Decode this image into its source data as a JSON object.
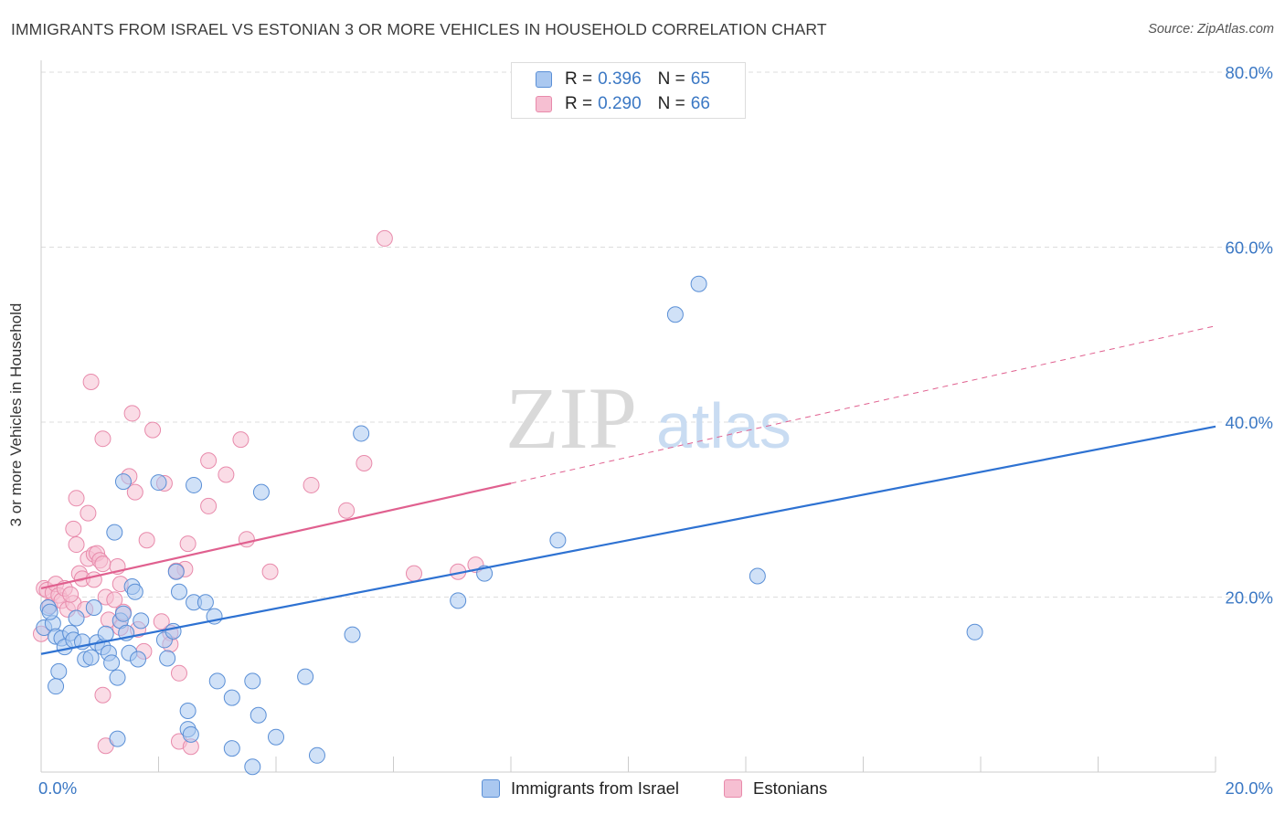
{
  "header": {
    "title": "IMMIGRANTS FROM ISRAEL VS ESTONIAN 3 OR MORE VEHICLES IN HOUSEHOLD CORRELATION CHART",
    "source": "Source: ZipAtlas.com"
  },
  "watermark": {
    "zip": "ZIP",
    "atlas": "atlas"
  },
  "legend_top": {
    "rows": [
      {
        "r_label": "R =",
        "r_value": "0.396",
        "n_label": "N =",
        "n_value": "65"
      },
      {
        "r_label": "R =",
        "r_value": "0.290",
        "n_label": "N =",
        "n_value": "66"
      }
    ]
  },
  "legend_bottom": {
    "items": [
      {
        "label": "Immigrants from Israel"
      },
      {
        "label": "Estonians"
      }
    ]
  },
  "colors": {
    "blue_fill": "#aac8f0",
    "blue_stroke": "#5a8fd6",
    "blue_line": "#2e72d2",
    "pink_fill": "#f6bfd2",
    "pink_stroke": "#e88aab",
    "pink_line": "#e0608f",
    "axis_text": "#3b78c4",
    "grid": "#dddddd"
  },
  "chart_data": {
    "type": "scatter",
    "title": "IMMIGRANTS FROM ISRAEL VS ESTONIAN 3 OR MORE VEHICLES IN HOUSEHOLD CORRELATION CHART",
    "xlabel": "",
    "ylabel": "3 or more Vehicles in Household",
    "xlim": [
      0,
      20
    ],
    "ylim": [
      0,
      80
    ],
    "x_ticks_labeled": [
      {
        "value": 0,
        "label": "0.0%"
      },
      {
        "value": 20,
        "label": "20.0%"
      }
    ],
    "x_ticks_minor": [
      2,
      4,
      6,
      8,
      10,
      12,
      14,
      16,
      18
    ],
    "y_ticks": [
      {
        "value": 20,
        "label": "20.0%"
      },
      {
        "value": 40,
        "label": "40.0%"
      },
      {
        "value": 60,
        "label": "60.0%"
      },
      {
        "value": 80,
        "label": "80.0%"
      }
    ],
    "grid": true,
    "legend_position": "top-center",
    "series": [
      {
        "name": "Immigrants from Israel",
        "color_key": "blue",
        "trend": {
          "x": [
            0,
            20
          ],
          "y": [
            13.5,
            39.5
          ],
          "dashed_after": null
        },
        "points": [
          [
            0.05,
            16.5
          ],
          [
            0.12,
            18.8
          ],
          [
            0.2,
            17.0
          ],
          [
            0.25,
            15.5
          ],
          [
            0.35,
            15.3
          ],
          [
            0.4,
            14.3
          ],
          [
            0.3,
            11.5
          ],
          [
            0.25,
            9.8
          ],
          [
            0.5,
            15.9
          ],
          [
            0.55,
            15.1
          ],
          [
            0.7,
            14.9
          ],
          [
            0.75,
            12.9
          ],
          [
            0.85,
            13.1
          ],
          [
            0.9,
            18.8
          ],
          [
            0.95,
            14.8
          ],
          [
            1.05,
            14.3
          ],
          [
            1.1,
            15.8
          ],
          [
            1.15,
            13.6
          ],
          [
            1.2,
            12.5
          ],
          [
            1.3,
            10.8
          ],
          [
            1.35,
            17.3
          ],
          [
            1.4,
            18.1
          ],
          [
            1.45,
            15.9
          ],
          [
            1.5,
            13.6
          ],
          [
            1.55,
            21.2
          ],
          [
            1.6,
            20.6
          ],
          [
            1.65,
            12.9
          ],
          [
            1.7,
            17.3
          ],
          [
            1.25,
            27.4
          ],
          [
            2.1,
            15.1
          ],
          [
            2.15,
            13.0
          ],
          [
            2.25,
            16.1
          ],
          [
            2.35,
            20.6
          ],
          [
            2.6,
            19.4
          ],
          [
            2.8,
            19.4
          ],
          [
            2.95,
            17.8
          ],
          [
            2.3,
            22.9
          ],
          [
            1.4,
            33.2
          ],
          [
            2.0,
            33.1
          ],
          [
            2.6,
            32.8
          ],
          [
            3.75,
            32.0
          ],
          [
            3.0,
            10.4
          ],
          [
            3.25,
            8.5
          ],
          [
            3.6,
            10.4
          ],
          [
            4.5,
            10.9
          ],
          [
            2.5,
            7.0
          ],
          [
            3.7,
            6.5
          ],
          [
            2.5,
            4.9
          ],
          [
            1.3,
            3.8
          ],
          [
            2.55,
            4.3
          ],
          [
            4.0,
            4.0
          ],
          [
            3.25,
            2.7
          ],
          [
            4.7,
            1.9
          ],
          [
            3.6,
            0.6
          ],
          [
            5.3,
            15.7
          ],
          [
            5.45,
            38.7
          ],
          [
            7.1,
            19.6
          ],
          [
            7.55,
            22.7
          ],
          [
            8.8,
            26.5
          ],
          [
            10.8,
            52.3
          ],
          [
            11.2,
            55.8
          ],
          [
            12.2,
            22.4
          ],
          [
            15.9,
            16.0
          ],
          [
            0.15,
            18.3
          ],
          [
            0.6,
            17.6
          ]
        ]
      },
      {
        "name": "Estonians",
        "color_key": "pink",
        "trend": {
          "x": [
            0,
            20
          ],
          "y": [
            21.0,
            51.0
          ],
          "solid_until": 8.0
        },
        "points": [
          [
            0.0,
            15.8
          ],
          [
            0.05,
            21.0
          ],
          [
            0.1,
            20.8
          ],
          [
            0.15,
            19.0
          ],
          [
            0.2,
            20.5
          ],
          [
            0.25,
            21.5
          ],
          [
            0.3,
            20.2
          ],
          [
            0.35,
            19.6
          ],
          [
            0.4,
            21.0
          ],
          [
            0.45,
            18.6
          ],
          [
            0.55,
            19.3
          ],
          [
            0.65,
            22.7
          ],
          [
            0.7,
            22.1
          ],
          [
            0.75,
            18.6
          ],
          [
            0.8,
            24.4
          ],
          [
            0.9,
            24.9
          ],
          [
            0.95,
            25.0
          ],
          [
            1.0,
            24.2
          ],
          [
            1.05,
            23.8
          ],
          [
            1.1,
            20.0
          ],
          [
            1.15,
            17.4
          ],
          [
            1.3,
            23.5
          ],
          [
            1.35,
            21.5
          ],
          [
            1.4,
            18.3
          ],
          [
            0.6,
            26.0
          ],
          [
            0.55,
            27.8
          ],
          [
            0.8,
            29.6
          ],
          [
            0.6,
            31.3
          ],
          [
            1.05,
            38.1
          ],
          [
            0.85,
            44.6
          ],
          [
            1.5,
            33.8
          ],
          [
            1.6,
            32.0
          ],
          [
            1.55,
            41.0
          ],
          [
            1.9,
            39.1
          ],
          [
            2.1,
            33.0
          ],
          [
            1.35,
            16.5
          ],
          [
            1.65,
            16.3
          ],
          [
            1.75,
            13.8
          ],
          [
            2.2,
            15.9
          ],
          [
            2.2,
            14.6
          ],
          [
            2.35,
            11.3
          ],
          [
            2.45,
            23.2
          ],
          [
            2.5,
            26.1
          ],
          [
            2.85,
            30.4
          ],
          [
            2.85,
            35.6
          ],
          [
            3.15,
            34.0
          ],
          [
            3.4,
            38.0
          ],
          [
            3.5,
            26.6
          ],
          [
            3.9,
            22.9
          ],
          [
            4.6,
            32.8
          ],
          [
            5.2,
            29.9
          ],
          [
            5.5,
            35.3
          ],
          [
            6.35,
            22.7
          ],
          [
            7.1,
            22.9
          ],
          [
            7.4,
            23.7
          ],
          [
            5.85,
            61.0
          ],
          [
            1.05,
            8.8
          ],
          [
            1.1,
            3.0
          ],
          [
            2.35,
            3.5
          ],
          [
            2.55,
            2.9
          ],
          [
            1.8,
            26.5
          ],
          [
            2.05,
            17.2
          ],
          [
            0.9,
            22.0
          ],
          [
            0.5,
            20.3
          ],
          [
            1.25,
            19.7
          ],
          [
            2.3,
            23.0
          ]
        ]
      }
    ]
  }
}
